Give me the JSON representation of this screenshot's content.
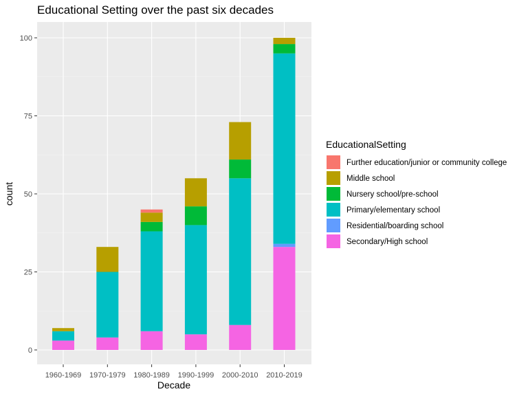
{
  "chart_data": {
    "type": "bar",
    "stacked": true,
    "title": "Educational Setting over the past six decades",
    "xlabel": "Decade",
    "ylabel": "count",
    "ylim": [
      0,
      105
    ],
    "yticks": [
      0,
      25,
      50,
      75,
      100
    ],
    "grid": true,
    "legend_position": "right",
    "legend_title": "EducationalSetting",
    "categories": [
      "1960-1969",
      "1970-1979",
      "1980-1989",
      "1990-1999",
      "2000-2010",
      "2010-2019"
    ],
    "series": [
      {
        "name": "Further education/junior or community college",
        "color": "#F8766D",
        "values": [
          0,
          0,
          1,
          0,
          0,
          0
        ]
      },
      {
        "name": "Middle school",
        "color": "#B79F00",
        "values": [
          1,
          8,
          3,
          9,
          12,
          2
        ]
      },
      {
        "name": "Nursery school/pre-school",
        "color": "#00BA38",
        "values": [
          0,
          0,
          3,
          6,
          6,
          3
        ]
      },
      {
        "name": "Primary/elementary school",
        "color": "#00BFC4",
        "values": [
          3,
          21,
          32,
          35,
          47,
          61
        ]
      },
      {
        "name": "Residential/boarding school",
        "color": "#619CFF",
        "values": [
          0,
          0,
          0,
          0,
          0,
          1
        ]
      },
      {
        "name": "Secondary/High school",
        "color": "#F564E3",
        "values": [
          3,
          4,
          6,
          5,
          8,
          33
        ]
      }
    ]
  }
}
